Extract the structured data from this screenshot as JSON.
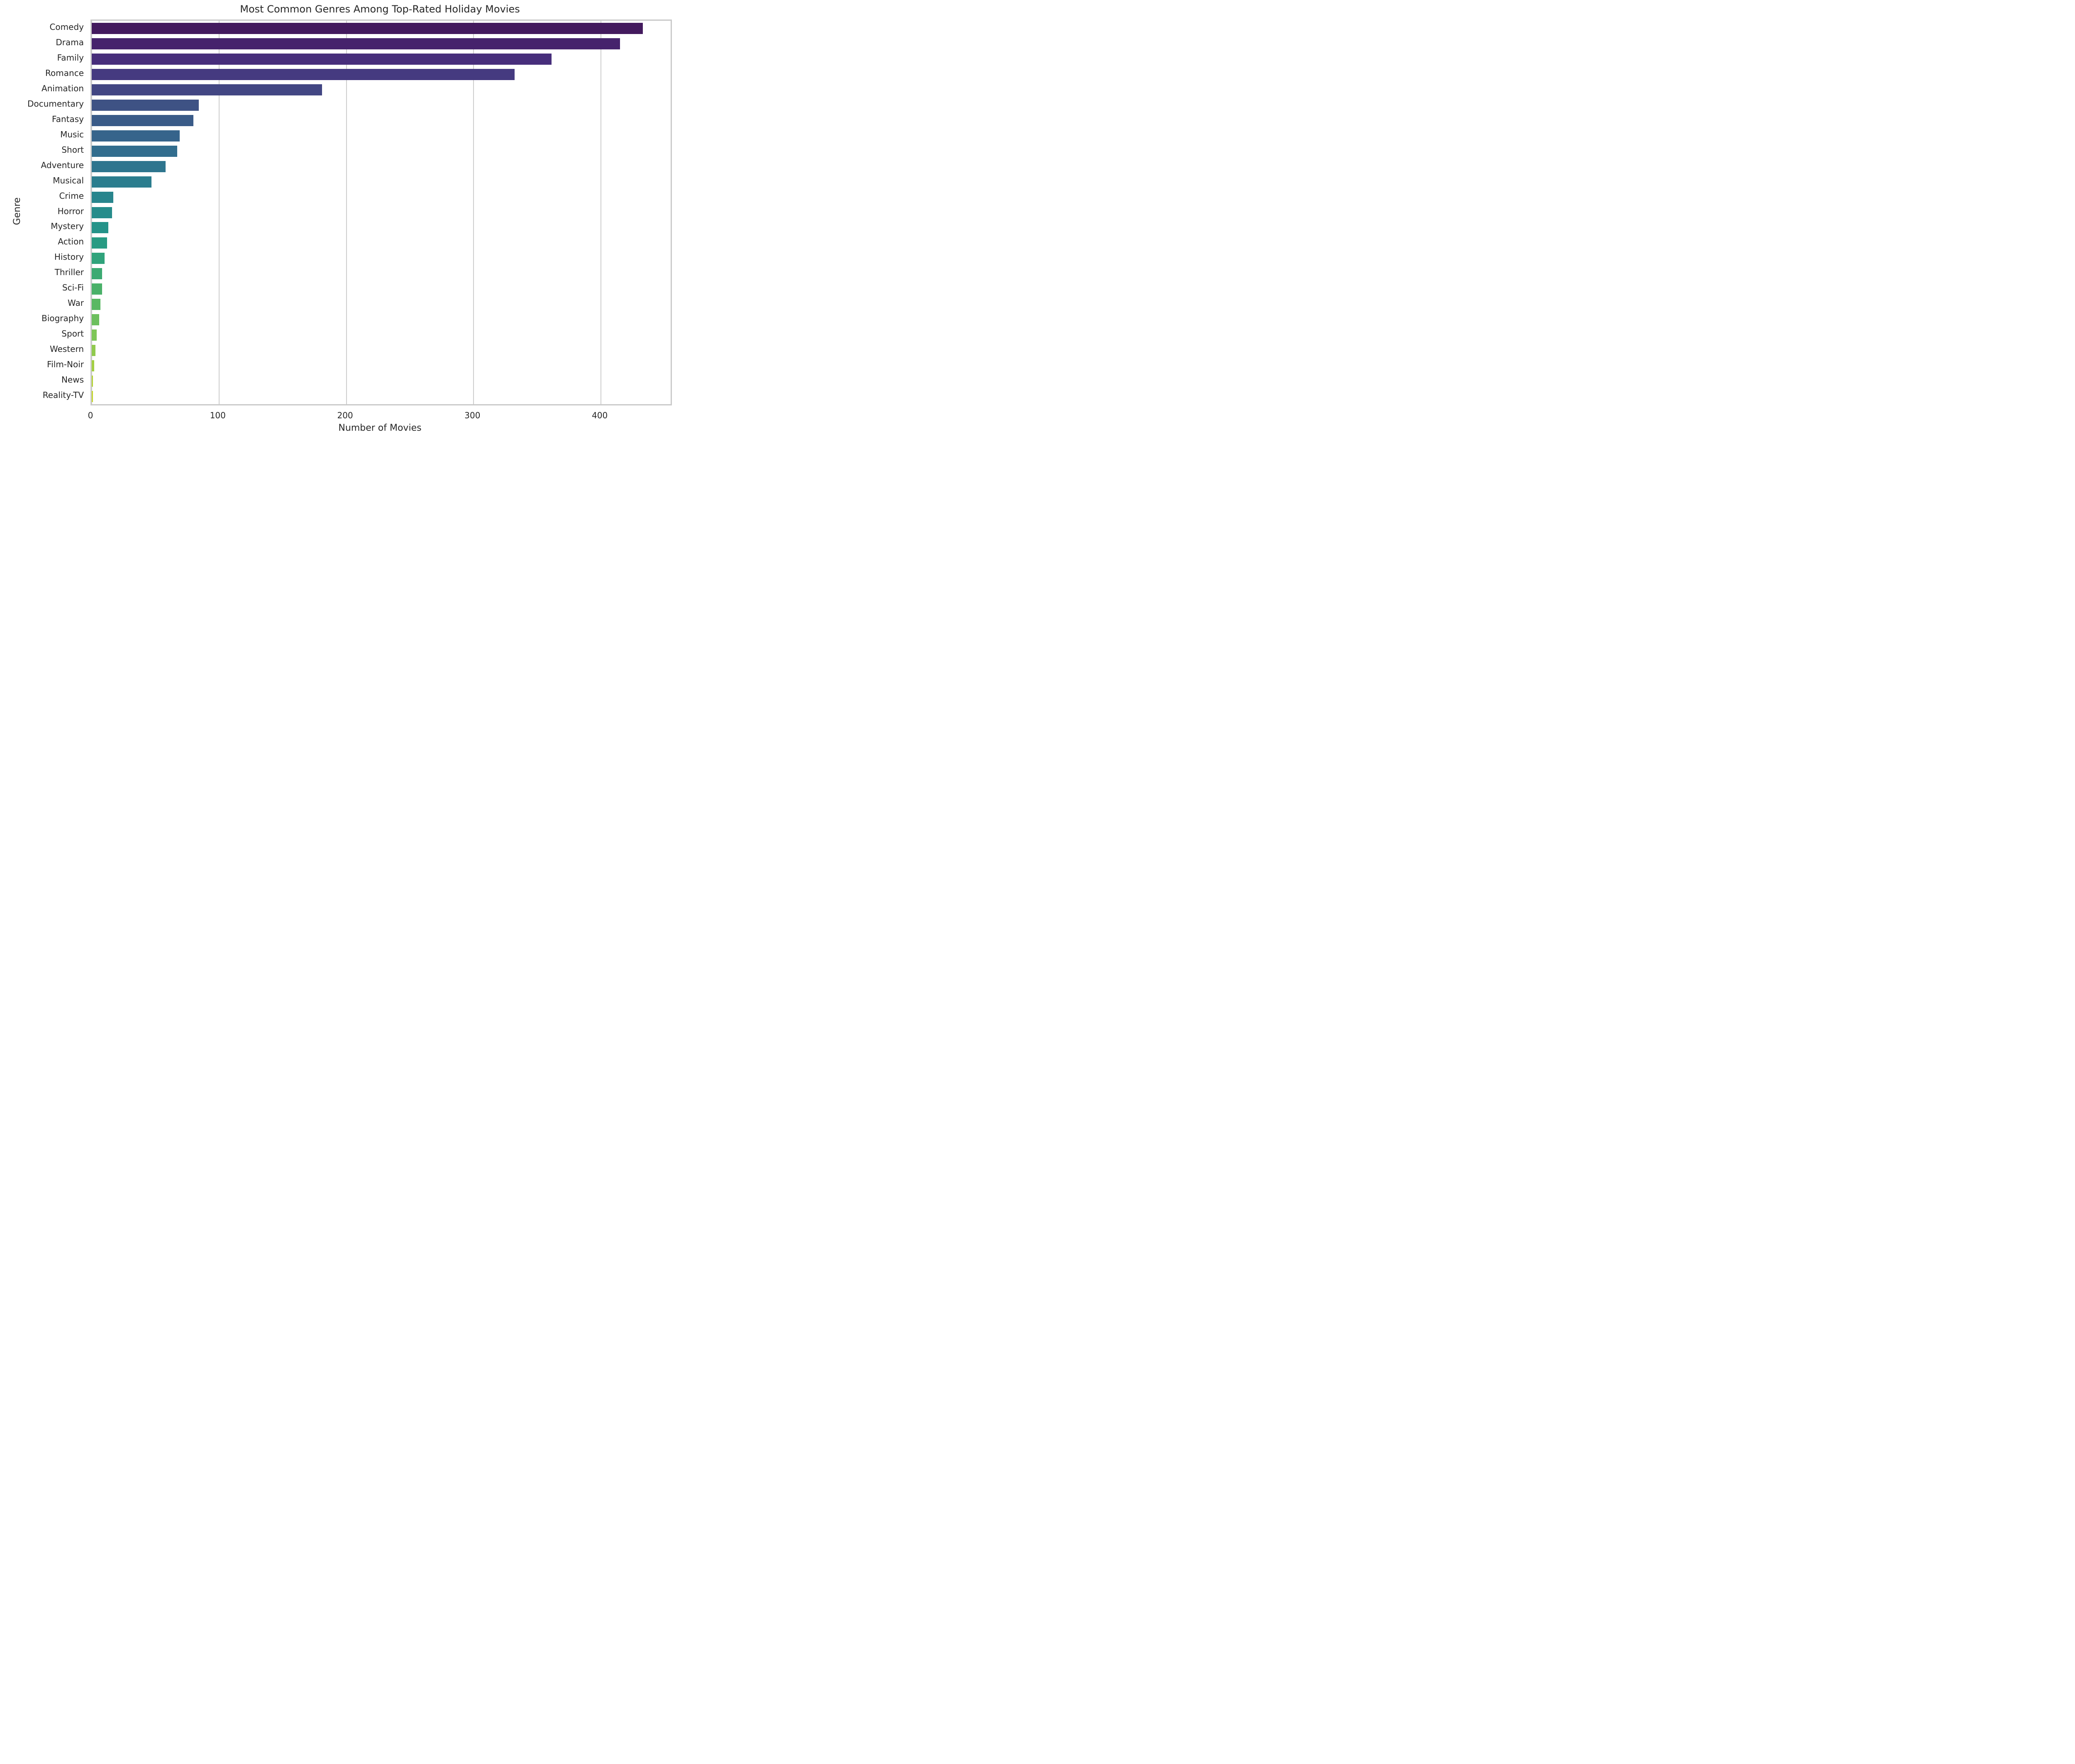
{
  "chart_data": {
    "type": "bar",
    "orientation": "horizontal",
    "title": "Most Common Genres Among Top-Rated Holiday Movies",
    "xlabel": "Number of Movies",
    "ylabel": "Genre",
    "categories": [
      "Comedy",
      "Drama",
      "Family",
      "Romance",
      "Animation",
      "Documentary",
      "Fantasy",
      "Music",
      "Short",
      "Adventure",
      "Musical",
      "Crime",
      "Horror",
      "Mystery",
      "Action",
      "History",
      "Thriller",
      "Sci-Fi",
      "War",
      "Biography",
      "Sport",
      "Western",
      "Film-Noir",
      "News",
      "Reality-TV"
    ],
    "values": [
      433,
      415,
      361,
      332,
      181,
      84,
      80,
      69,
      67,
      58,
      47,
      17,
      16,
      13,
      12,
      10,
      8,
      8,
      7,
      6,
      4,
      3,
      2,
      1,
      1
    ],
    "bar_colors": [
      "#431a5e",
      "#46236c",
      "#472e7b",
      "#453a80",
      "#424683",
      "#3e5284",
      "#3a5b88",
      "#36648b",
      "#326d8e",
      "#2e758e",
      "#2b7d8e",
      "#28858d",
      "#268c8b",
      "#259389",
      "#289b83",
      "#30a37b",
      "#3caa72",
      "#4ab169",
      "#59b863",
      "#6cbf5e",
      "#7ec658",
      "#90ca4e",
      "#a3cf43",
      "#b5d339",
      "#c6d730"
    ],
    "xticks": [
      0,
      100,
      200,
      300,
      400
    ],
    "xlim": [
      0,
      454.7
    ],
    "grid": "vertical",
    "legend": "none",
    "grid_color": "#cccccc",
    "spine_color": "#c9c9c9",
    "text_color": "#262626",
    "background": "#ffffff"
  }
}
